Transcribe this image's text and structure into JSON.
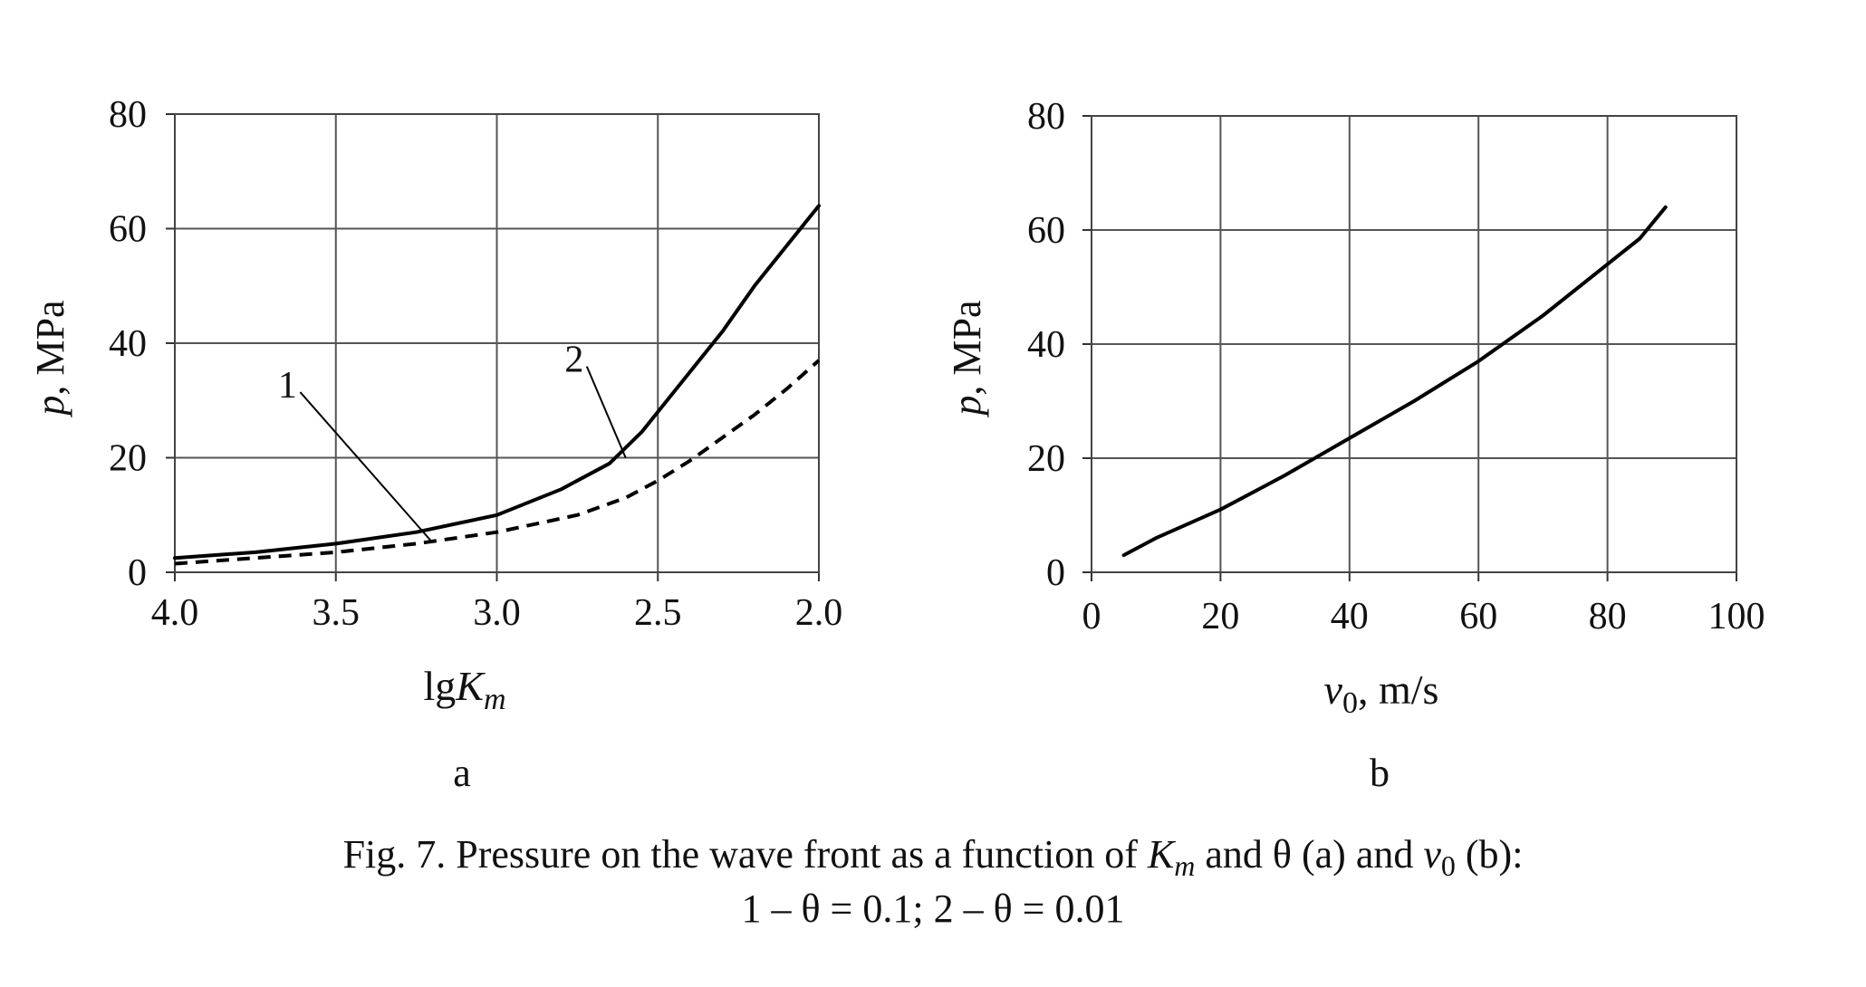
{
  "chart_data": [
    {
      "type": "line",
      "panel_label": "a",
      "xlabel_main": "lg",
      "xlabel_var": "K",
      "xlabel_sub": "m",
      "ylabel_var": "p",
      "ylabel_unit": ", MPa",
      "xlim": [
        4.0,
        2.0
      ],
      "x_reversed": true,
      "ylim": [
        0,
        80
      ],
      "xticks": [
        4.0,
        3.5,
        3.0,
        2.5,
        2.0
      ],
      "xtick_labels": [
        "4.0",
        "3.5",
        "3.0",
        "2.5",
        "2.0"
      ],
      "yticks": [
        0,
        20,
        40,
        60,
        80
      ],
      "ytick_labels": [
        "0",
        "20",
        "40",
        "60",
        "80"
      ],
      "grid": true,
      "series": [
        {
          "name": "2",
          "style": "solid",
          "points": [
            [
              4.0,
              2.5
            ],
            [
              3.75,
              3.5
            ],
            [
              3.5,
              5.0
            ],
            [
              3.25,
              7.0
            ],
            [
              3.0,
              10.0
            ],
            [
              2.8,
              14.5
            ],
            [
              2.65,
              19.0
            ],
            [
              2.55,
              24.5
            ],
            [
              2.4,
              35.0
            ],
            [
              2.3,
              42.0
            ],
            [
              2.2,
              50.0
            ],
            [
              2.1,
              57.0
            ],
            [
              2.0,
              64.0
            ]
          ]
        },
        {
          "name": "1",
          "style": "dashed",
          "points": [
            [
              4.0,
              1.5
            ],
            [
              3.75,
              2.5
            ],
            [
              3.5,
              3.5
            ],
            [
              3.25,
              5.0
            ],
            [
              3.0,
              7.0
            ],
            [
              2.75,
              10.0
            ],
            [
              2.6,
              13.0
            ],
            [
              2.5,
              16.0
            ],
            [
              2.4,
              19.5
            ],
            [
              2.3,
              23.5
            ],
            [
              2.2,
              27.5
            ],
            [
              2.1,
              32.0
            ],
            [
              2.0,
              37.0
            ]
          ]
        }
      ],
      "annotations": [
        {
          "text": "1",
          "series": "1",
          "label_at": [
            3.65,
            30.5
          ],
          "arrow_to": [
            3.2,
            5.2
          ]
        },
        {
          "text": "2",
          "series": "2",
          "label_at": [
            2.76,
            35.0
          ],
          "arrow_to": [
            2.6,
            20.0
          ]
        }
      ]
    },
    {
      "type": "line",
      "panel_label": "b",
      "xlabel_var": "v",
      "xlabel_sub": "0",
      "xlabel_unit": ", m/s",
      "ylabel_var": "p",
      "ylabel_unit": ", MPa",
      "xlim": [
        0,
        100
      ],
      "ylim": [
        0,
        80
      ],
      "xticks": [
        0,
        20,
        40,
        60,
        80,
        100
      ],
      "xtick_labels": [
        "0",
        "20",
        "40",
        "60",
        "80",
        "100"
      ],
      "yticks": [
        0,
        20,
        40,
        60,
        80
      ],
      "ytick_labels": [
        "0",
        "20",
        "40",
        "60",
        "80"
      ],
      "grid": true,
      "series": [
        {
          "style": "solid",
          "points": [
            [
              5,
              3.0
            ],
            [
              10,
              6.0
            ],
            [
              20,
              11.0
            ],
            [
              30,
              17.0
            ],
            [
              40,
              23.5
            ],
            [
              50,
              30.0
            ],
            [
              60,
              37.0
            ],
            [
              70,
              45.0
            ],
            [
              80,
              54.0
            ],
            [
              85,
              58.5
            ],
            [
              89,
              64.0
            ]
          ]
        }
      ]
    }
  ],
  "caption": {
    "line1_prefix": "Fig. 7. Pressure on the wave front as a function of ",
    "line1_var1": "K",
    "line1_var1_sub": "m",
    "line1_mid": " and θ (a) and ",
    "line1_var2": "v",
    "line1_var2_sub": "0",
    "line1_suffix": " (b):",
    "line2": "1 – θ = 0.1; 2 – θ = 0.01"
  }
}
